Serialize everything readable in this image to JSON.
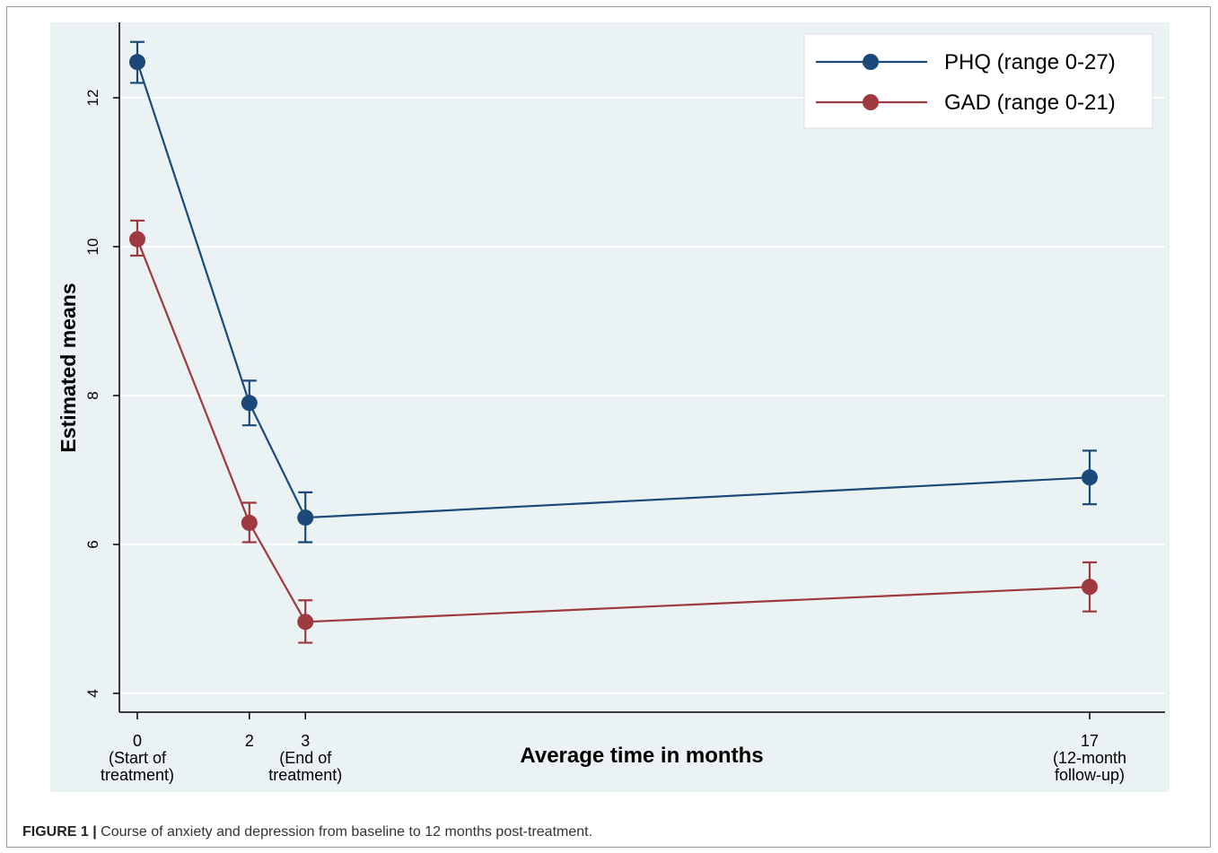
{
  "figure_label": "FIGURE 1 |",
  "caption": "Course of anxiety and depression from baseline to 12 months post-treatment.",
  "chart_data": {
    "type": "line",
    "title": "",
    "xlabel": "Average time in months",
    "ylabel": "Estimated means",
    "xlim": [
      -1,
      22
    ],
    "ylim": [
      3.75,
      13.0
    ],
    "x": [
      0,
      2,
      3,
      17
    ],
    "x_tick_labels": [
      {
        "x": 0,
        "lines": [
          "0",
          "(Start of",
          "treatment)"
        ]
      },
      {
        "x": 2,
        "lines": [
          "2"
        ]
      },
      {
        "x": 3,
        "lines": [
          "3",
          "(End of",
          "treatment)"
        ]
      },
      {
        "x": 17,
        "lines": [
          "17",
          "(12-month",
          "follow-up)"
        ]
      }
    ],
    "y_ticks": [
      4,
      6,
      8,
      10,
      12
    ],
    "grid": true,
    "legend_position": "top-right",
    "series": [
      {
        "name": "PHQ (range 0-27)",
        "color": "#1b4a7a",
        "values": [
          12.48,
          7.9,
          6.36,
          6.9
        ],
        "ci_lower": [
          12.2,
          7.6,
          6.03,
          6.54
        ],
        "ci_upper": [
          12.75,
          8.2,
          6.7,
          7.26
        ]
      },
      {
        "name": "GAD (range 0-21)",
        "color": "#9e3a3f",
        "values": [
          10.1,
          6.29,
          4.96,
          5.43
        ],
        "ci_lower": [
          9.88,
          6.03,
          4.68,
          5.1
        ],
        "ci_upper": [
          10.35,
          6.56,
          5.25,
          5.76
        ]
      }
    ],
    "colors": {
      "plot_background": "#eaf2f3",
      "grid": "#ffffff",
      "axis": "#000000"
    }
  }
}
